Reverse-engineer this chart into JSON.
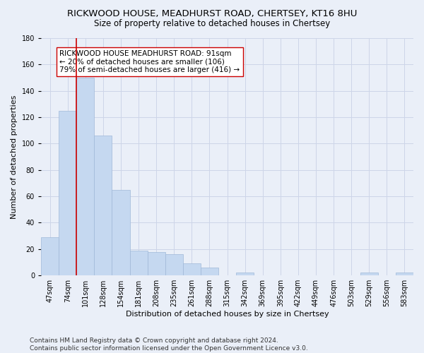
{
  "title": "RICKWOOD HOUSE, MEADHURST ROAD, CHERTSEY, KT16 8HU",
  "subtitle": "Size of property relative to detached houses in Chertsey",
  "xlabel": "Distribution of detached houses by size in Chertsey",
  "ylabel": "Number of detached properties",
  "categories": [
    "47sqm",
    "74sqm",
    "101sqm",
    "128sqm",
    "154sqm",
    "181sqm",
    "208sqm",
    "235sqm",
    "261sqm",
    "288sqm",
    "315sqm",
    "342sqm",
    "369sqm",
    "395sqm",
    "422sqm",
    "449sqm",
    "476sqm",
    "503sqm",
    "529sqm",
    "556sqm",
    "583sqm"
  ],
  "values": [
    29,
    125,
    150,
    106,
    65,
    19,
    18,
    16,
    9,
    6,
    0,
    2,
    0,
    0,
    0,
    0,
    0,
    0,
    2,
    0,
    2
  ],
  "bar_color": "#c5d8f0",
  "bar_edge_color": "#a0b8d8",
  "grid_color": "#cdd5e8",
  "background_color": "#eaeff8",
  "vline_color": "#cc0000",
  "vline_x": 1.5,
  "annotation_text": "RICKWOOD HOUSE MEADHURST ROAD: 91sqm\n← 20% of detached houses are smaller (106)\n79% of semi-detached houses are larger (416) →",
  "annotation_box_facecolor": "#ffffff",
  "annotation_box_edgecolor": "#cc0000",
  "ylim": [
    0,
    180
  ],
  "yticks": [
    0,
    20,
    40,
    60,
    80,
    100,
    120,
    140,
    160,
    180
  ],
  "footer": "Contains HM Land Registry data © Crown copyright and database right 2024.\nContains public sector information licensed under the Open Government Licence v3.0.",
  "title_fontsize": 9.5,
  "subtitle_fontsize": 8.5,
  "xlabel_fontsize": 8,
  "ylabel_fontsize": 8,
  "tick_fontsize": 7,
  "annotation_fontsize": 7.5,
  "footer_fontsize": 6.5
}
